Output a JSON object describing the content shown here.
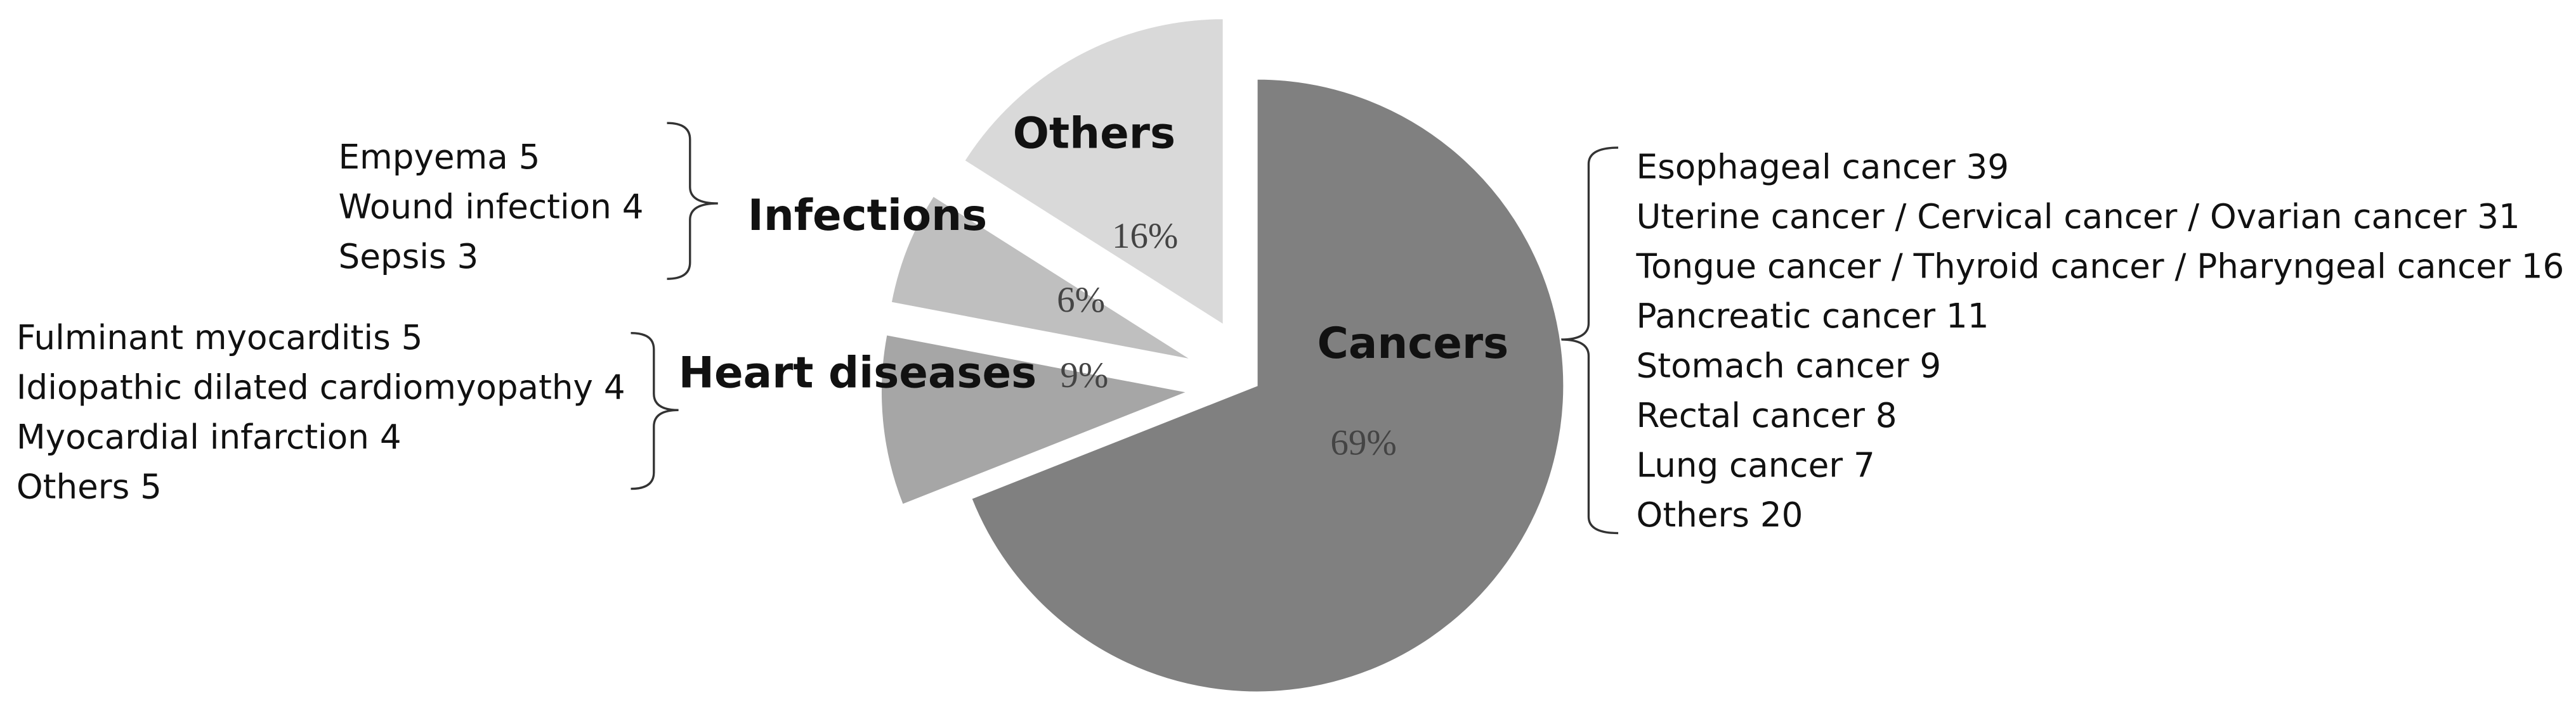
{
  "chart_data": {
    "type": "pie",
    "categories": [
      "Cancers",
      "Heart diseases",
      "Infections",
      "Others"
    ],
    "values": [
      69,
      9,
      6,
      16
    ],
    "value_labels": [
      "69%",
      "9%",
      "6%",
      "16%"
    ],
    "colors": [
      "#808080",
      "#a6a6a6",
      "#bfbfbf",
      "#d9d9d9"
    ],
    "cancer_items": [
      {
        "label": "Esophageal cancer",
        "value": 39
      },
      {
        "label": "Uterine cancer / Cervical cancer / Ovarian cancer",
        "value": 31
      },
      {
        "label": "Tongue cancer / Thyroid cancer / Pharyngeal cancer",
        "value": 16
      },
      {
        "label": "Pancreatic cancer",
        "value": 11
      },
      {
        "label": "Stomach cancer",
        "value": 9
      },
      {
        "label": "Rectal cancer",
        "value": 8
      },
      {
        "label": "Lung cancer",
        "value": 7
      },
      {
        "label": "Others",
        "value": 20
      }
    ],
    "heart_items": [
      {
        "label": "Fulminant myocarditis",
        "value": 5
      },
      {
        "label": "Idiopathic dilated cardiomyopathy",
        "value": 4
      },
      {
        "label": "Myocardial infarction",
        "value": 4
      },
      {
        "label": "Others",
        "value": 5
      }
    ],
    "infection_items": [
      {
        "label": "Empyema",
        "value": 5
      },
      {
        "label": "Wound infection",
        "value": 4
      },
      {
        "label": "Sepsis",
        "value": 3
      }
    ]
  }
}
